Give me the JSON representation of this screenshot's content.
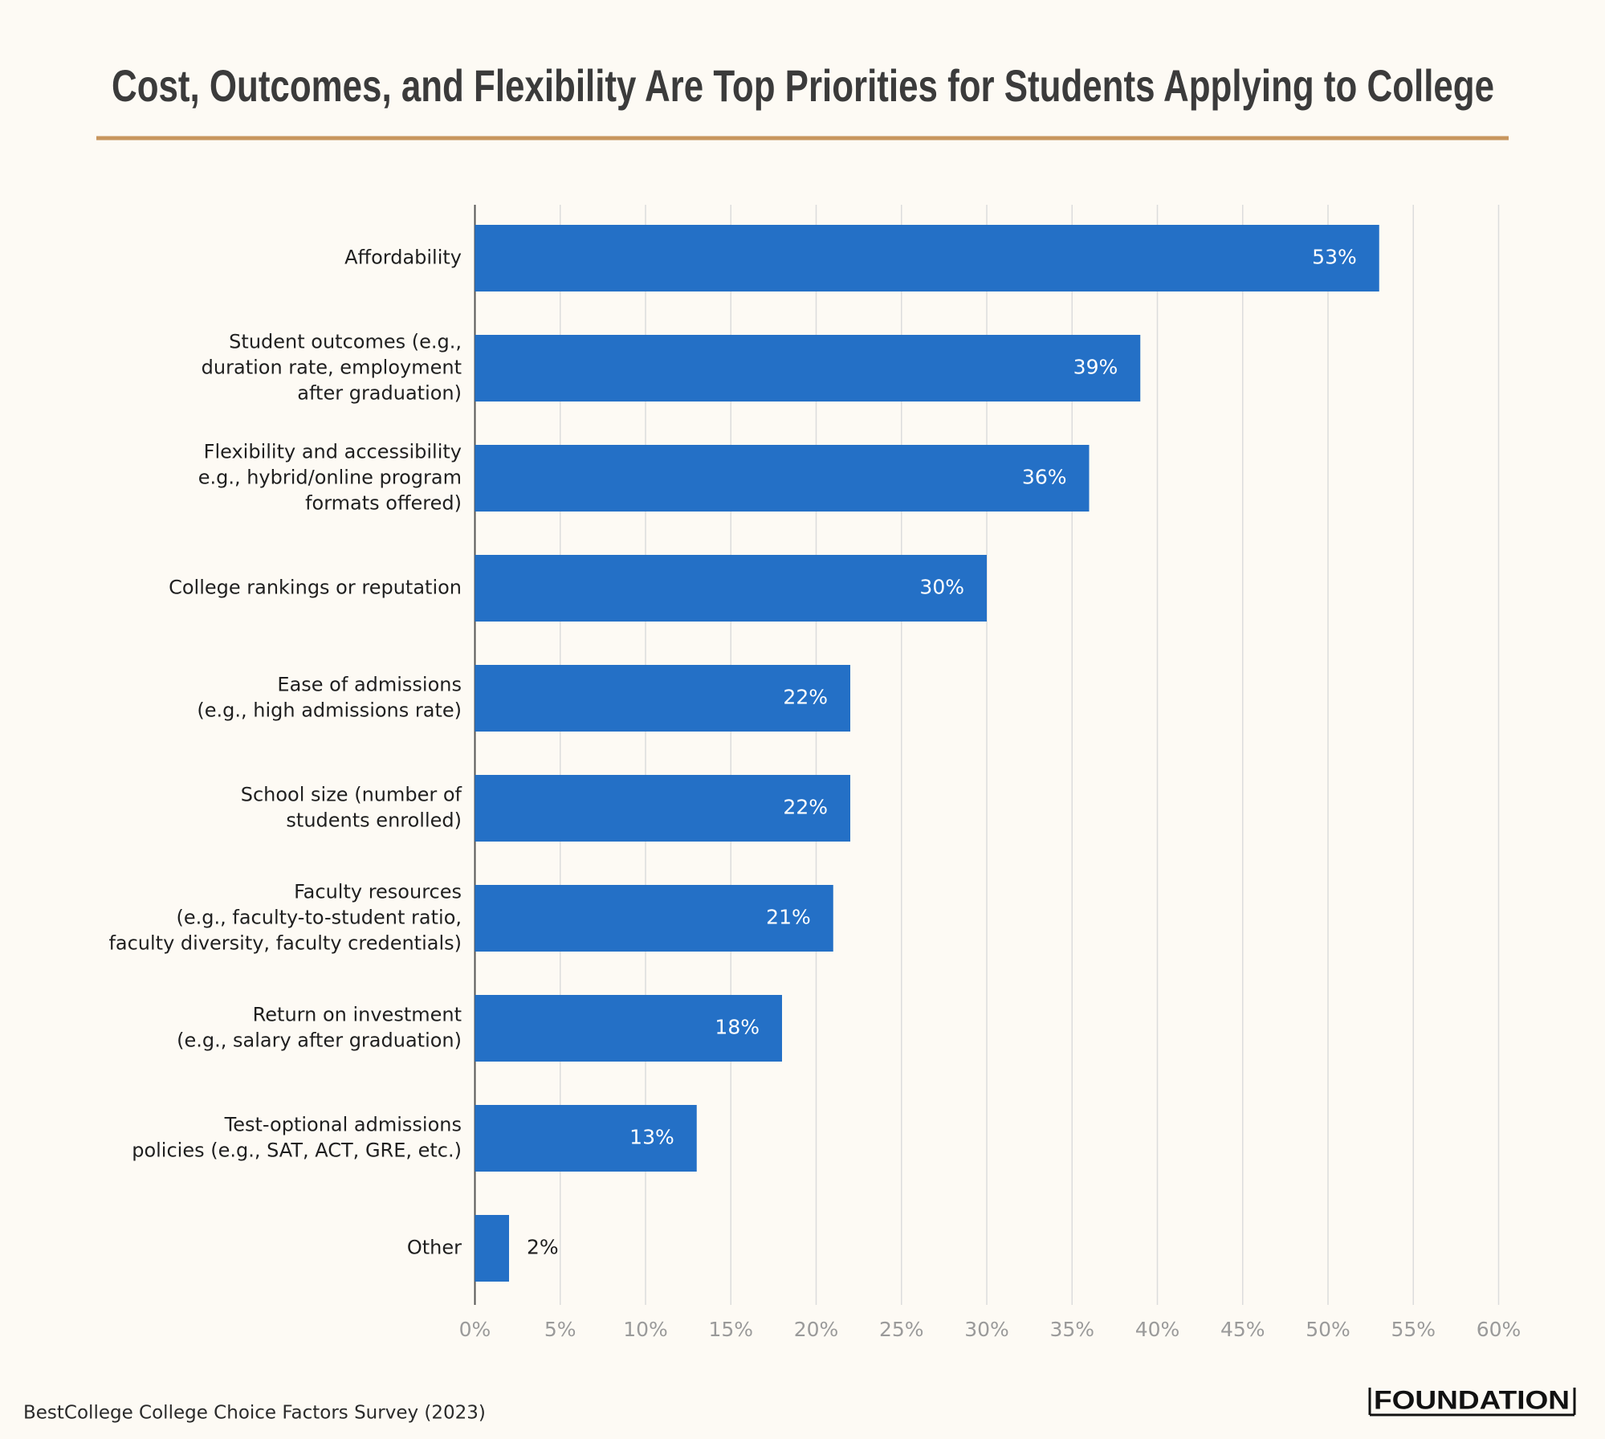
{
  "chart_data": {
    "type": "bar",
    "orientation": "horizontal",
    "title": "Cost, Outcomes, and Flexibility Are Top Priorities for Students Applying to College",
    "categories": [
      "Affordability",
      "Student outcomes (e.g.,\nduration rate, employment\nafter graduation)",
      "Flexibility and accessibility\ne.g., hybrid/online program\nformats offered)",
      "College rankings or reputation",
      "Ease of admissions\n(e.g., high admissions rate)",
      "School size (number of\nstudents enrolled)",
      "Faculty resources\n(e.g., faculty-to-student ratio,\nfaculty diversity, faculty credentials)",
      "Return on investment\n(e.g., salary after graduation)",
      "Test-optional admissions\npolicies (e.g., SAT, ACT, GRE, etc.)",
      "Other"
    ],
    "values": [
      53,
      39,
      36,
      30,
      22,
      22,
      21,
      18,
      13,
      2
    ],
    "value_labels": [
      "53%",
      "39%",
      "36%",
      "30%",
      "22%",
      "22%",
      "21%",
      "18%",
      "13%",
      "2%"
    ],
    "color": "#2470c6",
    "xlim": [
      0,
      60
    ],
    "xticks": [
      {
        "value": 0,
        "label": "0%"
      },
      {
        "value": 5,
        "label": "5%"
      },
      {
        "value": 10,
        "label": "10%"
      },
      {
        "value": 15,
        "label": "15%"
      },
      {
        "value": 20,
        "label": "20%"
      },
      {
        "value": 25,
        "label": "25%"
      },
      {
        "value": 30,
        "label": "30%"
      },
      {
        "value": 35,
        "label": "35%"
      },
      {
        "value": 40,
        "label": "40%"
      },
      {
        "value": 45,
        "label": "45%"
      },
      {
        "value": 50,
        "label": "50%"
      },
      {
        "value": 55,
        "label": "55%"
      },
      {
        "value": 60,
        "label": "60%"
      }
    ],
    "grid": true,
    "source": "BestCollege College Choice Factors Survey (2023)",
    "logo": "FOUNDATION"
  }
}
